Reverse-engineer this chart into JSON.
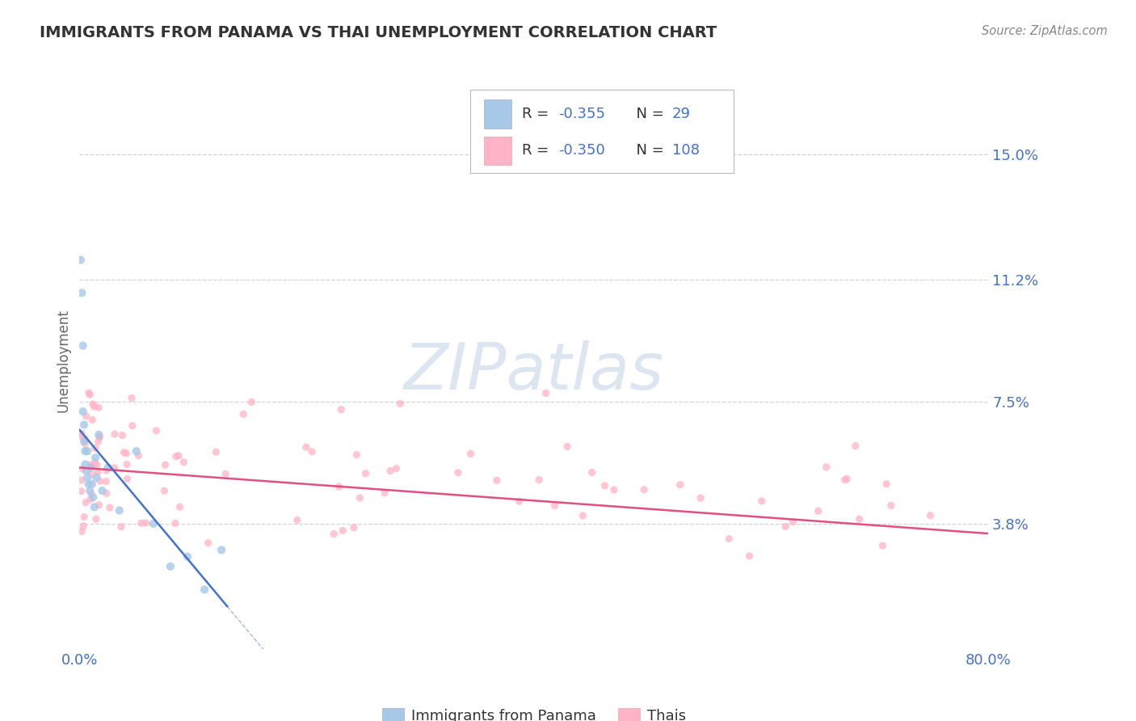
{
  "title": "IMMIGRANTS FROM PANAMA VS THAI UNEMPLOYMENT CORRELATION CHART",
  "source_text": "Source: ZipAtlas.com",
  "ylabel": "Unemployment",
  "xlim": [
    0.0,
    0.8
  ],
  "ylim": [
    0.0,
    0.175
  ],
  "yticks": [
    0.038,
    0.075,
    0.112,
    0.15
  ],
  "ytick_labels": [
    "3.8%",
    "7.5%",
    "11.2%",
    "15.0%"
  ],
  "xtick_labels": [
    "0.0%",
    "80.0%"
  ],
  "color_panama": "#a8c8e8",
  "color_thais": "#ffb3c6",
  "color_blue": "#4472c4",
  "color_trend_panama": "#4472c4",
  "color_trend_thais": "#e05080",
  "background_color": "#ffffff",
  "grid_color": "#c8c8c8",
  "title_color": "#333333",
  "watermark_color": "#dde6f0",
  "legend_label1": "Immigrants from Panama",
  "legend_label2": "Thais",
  "panama_x": [
    0.001,
    0.002,
    0.003,
    0.003,
    0.004,
    0.004,
    0.005,
    0.005,
    0.006,
    0.007,
    0.007,
    0.008,
    0.009,
    0.01,
    0.011,
    0.012,
    0.013,
    0.014,
    0.015,
    0.017,
    0.02,
    0.025,
    0.035,
    0.05,
    0.065,
    0.08,
    0.095,
    0.11,
    0.125
  ],
  "panama_y": [
    0.118,
    0.108,
    0.092,
    0.072,
    0.068,
    0.063,
    0.06,
    0.056,
    0.054,
    0.052,
    0.06,
    0.05,
    0.048,
    0.055,
    0.05,
    0.046,
    0.043,
    0.058,
    0.052,
    0.065,
    0.048,
    0.055,
    0.042,
    0.06,
    0.038,
    0.025,
    0.028,
    0.018,
    0.03
  ]
}
